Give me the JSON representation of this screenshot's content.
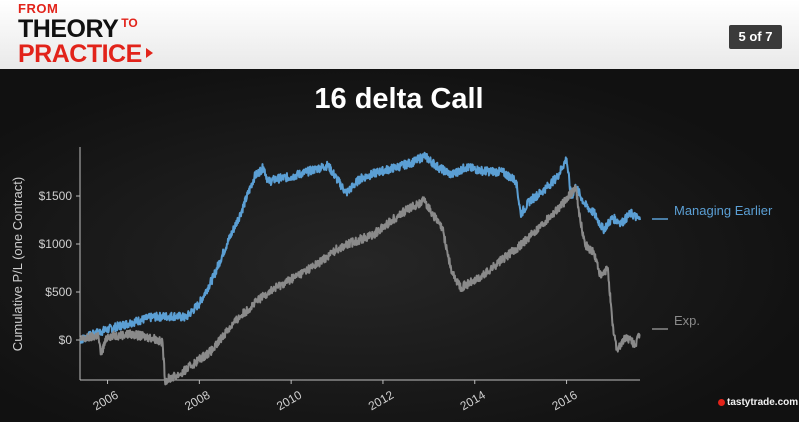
{
  "header": {
    "logo": {
      "from": "FROM",
      "theory": "THEORY",
      "to": "TO",
      "practice": "PRACTICE"
    },
    "slide_counter": "5 of 7"
  },
  "branding": "tastytrade.com",
  "colors": {
    "managing_earlier": "#5b9fd4",
    "exp": "#8a8a8a",
    "text": "#cfcfcf",
    "title": "#ffffff"
  },
  "chart_data": {
    "type": "line",
    "title": "16 delta Call",
    "xlabel": "",
    "ylabel": "Cumulative P/L (one Contract)",
    "xlim": [
      2005.4,
      2017.6
    ],
    "ylim": [
      -400,
      2000
    ],
    "x_ticks": [
      2006,
      2008,
      2010,
      2012,
      2014,
      2016
    ],
    "x_tick_labels": [
      "2006",
      "2008",
      "2010",
      "2012",
      "2014",
      "2016"
    ],
    "y_ticks": [
      0,
      500,
      1000,
      1500
    ],
    "y_tick_labels": [
      "$0",
      "$500",
      "$1000",
      "$1500"
    ],
    "grid": false,
    "legend": "right, inline labels",
    "series": [
      {
        "name": "Managing Earlier",
        "x": [
          2005.4,
          2005.8,
          2006.0,
          2006.5,
          2007.0,
          2007.5,
          2007.7,
          2008.0,
          2008.3,
          2008.6,
          2008.9,
          2009.2,
          2009.4,
          2009.5,
          2009.7,
          2010.0,
          2010.4,
          2010.8,
          2011.2,
          2011.5,
          2011.9,
          2012.3,
          2012.7,
          2012.9,
          2013.2,
          2013.5,
          2013.8,
          2014.2,
          2014.6,
          2014.9,
          2015.0,
          2015.2,
          2015.5,
          2015.8,
          2016.0,
          2016.1,
          2016.2,
          2016.4,
          2016.6,
          2016.8,
          2017.0,
          2017.2,
          2017.4,
          2017.6
        ],
        "y": [
          0,
          80,
          110,
          180,
          240,
          250,
          230,
          380,
          650,
          1000,
          1320,
          1700,
          1800,
          1650,
          1680,
          1700,
          1760,
          1820,
          1530,
          1680,
          1750,
          1800,
          1860,
          1920,
          1800,
          1720,
          1800,
          1760,
          1750,
          1660,
          1310,
          1450,
          1560,
          1700,
          1890,
          1480,
          1600,
          1410,
          1320,
          1150,
          1270,
          1220,
          1320,
          1250
        ]
      },
      {
        "name": "Exp.",
        "x": [
          2005.4,
          2005.8,
          2005.85,
          2006.0,
          2006.5,
          2007.0,
          2007.2,
          2007.25,
          2007.6,
          2008.0,
          2008.3,
          2008.6,
          2008.9,
          2009.2,
          2009.5,
          2009.8,
          2010.2,
          2010.6,
          2011.0,
          2011.4,
          2011.8,
          2012.2,
          2012.6,
          2012.9,
          2013.1,
          2013.3,
          2013.5,
          2013.7,
          2014.1,
          2014.5,
          2014.9,
          2015.2,
          2015.6,
          2016.0,
          2016.2,
          2016.3,
          2016.4,
          2016.6,
          2016.75,
          2016.9,
          2017.0,
          2017.1,
          2017.3,
          2017.5,
          2017.6
        ],
        "y": [
          0,
          50,
          -150,
          40,
          60,
          20,
          -30,
          -420,
          -350,
          -200,
          -100,
          100,
          250,
          380,
          500,
          580,
          690,
          800,
          950,
          1030,
          1100,
          1250,
          1380,
          1450,
          1300,
          1150,
          700,
          550,
          640,
          800,
          950,
          1080,
          1270,
          1460,
          1600,
          1240,
          1000,
          900,
          650,
          750,
          150,
          -100,
          30,
          -50,
          60
        ]
      }
    ]
  }
}
